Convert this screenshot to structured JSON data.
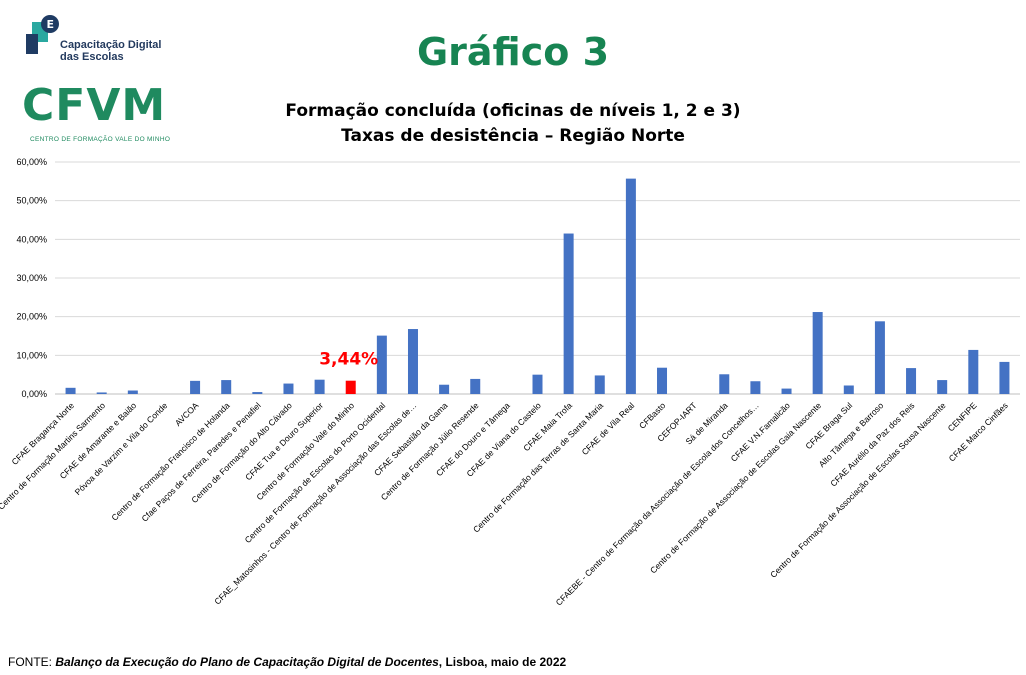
{
  "logos": {
    "cdc_text_line1": "Capacitação Digital",
    "cdc_text_line2": "das Escolas",
    "cdc_glyph": "E",
    "cfvm_word": "CFVM",
    "cfvm_subtitle": "CENTRO DE FORMAÇÃO VALE DO MINHO"
  },
  "header": {
    "big_title": "Gráfico 3"
  },
  "source": {
    "prefix": "FONTE: ",
    "italic": "Balanço da Execução do  Plano de Capacitação Digital de Docentes",
    "suffix": ", Lisboa, maio de 2022"
  },
  "colors": {
    "bar": "#4472c4",
    "highlight": "#ff0000",
    "title_green": "#178452",
    "grid": "#d9d9d9"
  },
  "chart_data": {
    "type": "bar",
    "title": [
      "Formação concluída (oficinas de níveis 1, 2 e 3)",
      "Taxas de desistência – Região Norte"
    ],
    "xlabel": "",
    "ylabel": "",
    "ylim": [
      0,
      60
    ],
    "yticks": [
      "0,00%",
      "10,00%",
      "20,00%",
      "30,00%",
      "40,00%",
      "50,00%",
      "60,00%"
    ],
    "grid": true,
    "categories": [
      "CFAE Bragança Norte",
      "Centro de Formação Martins Sarmento",
      "CFAE de Amarante e Baião",
      "Póvoa de Varzim e Vila do Conde",
      "AVCOA",
      "Centro de Formação Francisco de Holanda",
      "Cfae Paços de Ferreira, Paredes e Penafiel",
      "Centro de Formação do Alto Cávado",
      "CFAE Tua e Douro Superior",
      "Centro de Formação Vale do Minho",
      "Centro de Formação de Escolas do Porto Ocidental",
      "CFAE_Matosinhos - Centro de Formação de Associação das Escolas de…",
      "CFAE Sebastião da Gama",
      "Centro de Formação Júlio Resende",
      "CFAE do Douro e Tâmega",
      "CFAE de Viana do Castelo",
      "CFAE Maia Trofa",
      "Centro de Formação das Terras de Santa Maria",
      "CFAE de Vila Real",
      "CFBasto",
      "CEFOP-IART",
      "Sá de Miranda",
      "CFAEBE - Centro de Formação da Associação de Escola dos Concelhos…",
      "CFAE V.N.Famalicão",
      "Centro de Formação de Associação de Escolas Gaia Nascente",
      "CFAE Braga Sul",
      "Alto Tâmega e Barroso",
      "CFAE Aurélio da Paz dos Reis",
      "Centro de Formação de Associação de Escolas Sousa Nascente",
      "CENFIPE",
      "CFAE Marco Cinfães"
    ],
    "values": [
      1.6,
      0.4,
      0.9,
      0,
      3.4,
      3.6,
      0.5,
      2.7,
      3.7,
      3.44,
      15.1,
      16.8,
      2.4,
      3.9,
      0,
      5.0,
      41.5,
      4.8,
      55.7,
      6.8,
      0,
      5.1,
      3.3,
      1.4,
      21.2,
      2.2,
      18.8,
      6.7,
      3.6,
      11.4,
      8.3
    ],
    "highlight_index": 9,
    "highlight_label": "3,44%"
  }
}
